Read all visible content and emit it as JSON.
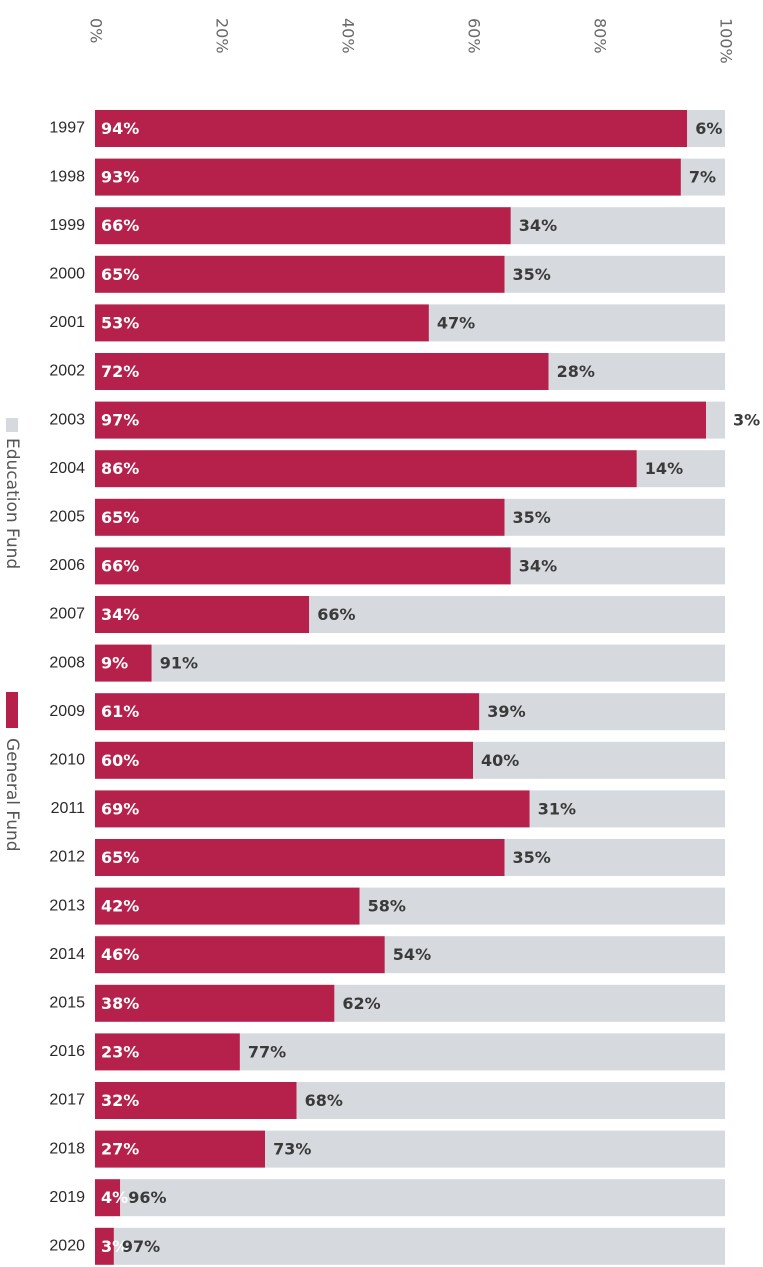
{
  "chart_data": {
    "type": "bar",
    "orientation": "horizontal",
    "stacked": true,
    "x_ticks": [
      "0%",
      "20%",
      "40%",
      "60%",
      "80%",
      "100%"
    ],
    "xlim": [
      0,
      100
    ],
    "categories": [
      "1997",
      "1998",
      "1999",
      "2000",
      "2001",
      "2002",
      "2003",
      "2004",
      "2005",
      "2006",
      "2007",
      "2008",
      "2009",
      "2010",
      "2011",
      "2012",
      "2013",
      "2014",
      "2015",
      "2016",
      "2017",
      "2018",
      "2019",
      "2020"
    ],
    "series": [
      {
        "name": "General Fund",
        "color": "#b5214a",
        "values": [
          94,
          93,
          66,
          65,
          53,
          72,
          97,
          86,
          65,
          66,
          34,
          9,
          61,
          60,
          69,
          65,
          42,
          46,
          38,
          23,
          32,
          27,
          4,
          3
        ],
        "labels": [
          "94%",
          "93%",
          "66%",
          "65%",
          "53%",
          "72%",
          "97%",
          "86%",
          "65%",
          "66%",
          "34%",
          "9%",
          "61%",
          "60%",
          "69%",
          "65%",
          "42%",
          "46%",
          "38%",
          "23%",
          "32%",
          "27%",
          "4%",
          "3%"
        ]
      },
      {
        "name": "Education Fund",
        "color": "#d6dade",
        "values": [
          6,
          7,
          34,
          35,
          47,
          28,
          3,
          14,
          35,
          34,
          66,
          91,
          39,
          40,
          31,
          35,
          58,
          54,
          62,
          77,
          68,
          73,
          96,
          97
        ],
        "labels": [
          "6%",
          "7%",
          "34%",
          "35%",
          "47%",
          "28%",
          "3%",
          "14%",
          "35%",
          "34%",
          "66%",
          "91%",
          "39%",
          "40%",
          "31%",
          "35%",
          "58%",
          "54%",
          "62%",
          "77%",
          "68%",
          "73%",
          "96%",
          "97%"
        ]
      }
    ],
    "legend_position": "left (vertical)",
    "grid": false
  }
}
